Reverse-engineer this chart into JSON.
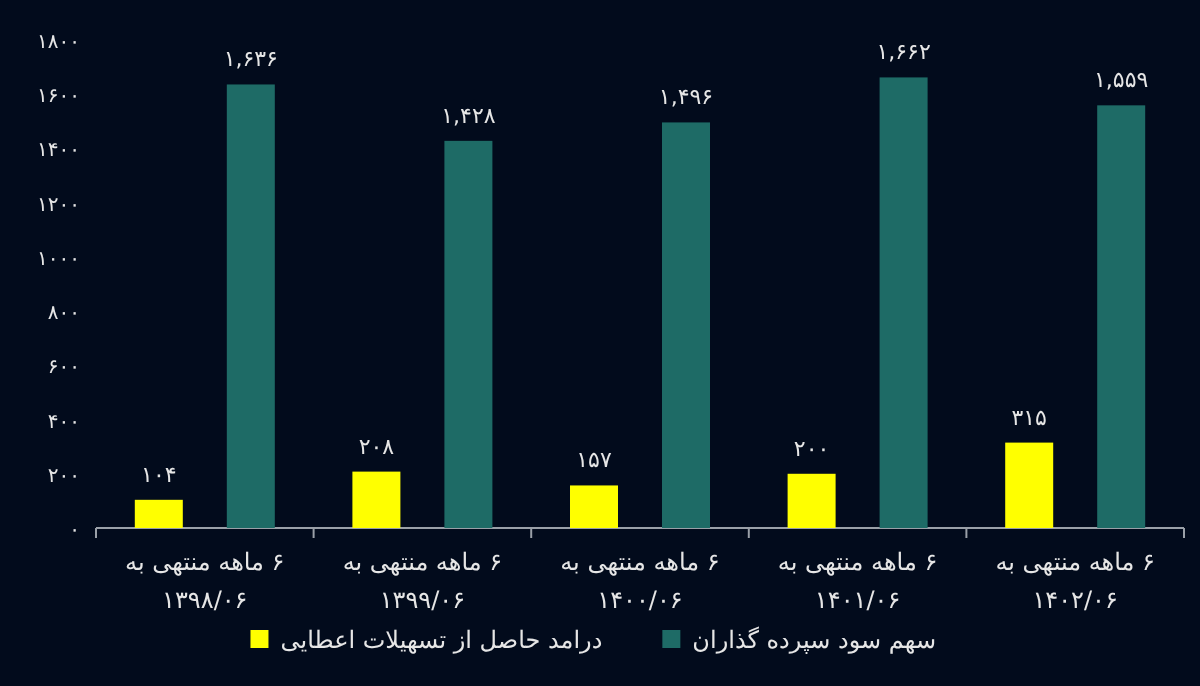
{
  "chart_data": {
    "type": "bar",
    "categories": [
      "۶ ماهه منتهی به ۱۳۹۸/۰۶",
      "۶ ماهه منتهی به ۱۳۹۹/۰۶",
      "۶ ماهه منتهی به ۱۴۰۰/۰۶",
      "۶ ماهه منتهی به ۱۴۰۱/۰۶",
      "۶ ماهه منتهی به ۱۴۰۲/۰۶"
    ],
    "series": [
      {
        "name": "درامد حاصل از تسهیلات اعطایی",
        "color": "#ffff00",
        "values": [
          104,
          208,
          157,
          200,
          315
        ],
        "value_labels": [
          "۱۰۴",
          "۲۰۸",
          "۱۵۷",
          "۲۰۰",
          "۳۱۵"
        ]
      },
      {
        "name": "سهم سود سپرده گذاران",
        "color": "#1e6b66",
        "values": [
          1636,
          1428,
          1496,
          1662,
          1559
        ],
        "value_labels": [
          "۱,۶۳۶",
          "۱,۴۲۸",
          "۱,۴۹۶",
          "۱,۶۶۲",
          "۱,۵۵۹"
        ]
      }
    ],
    "ylim": [
      0,
      1800
    ],
    "yticks": [
      {
        "value": 0,
        "label": "۰"
      },
      {
        "value": 200,
        "label": "۲۰۰"
      },
      {
        "value": 400,
        "label": "۴۰۰"
      },
      {
        "value": 600,
        "label": "۶۰۰"
      },
      {
        "value": 800,
        "label": "۸۰۰"
      },
      {
        "value": 1000,
        "label": "۱۰۰۰"
      },
      {
        "value": 1200,
        "label": "۱۲۰۰"
      },
      {
        "value": 1400,
        "label": "۱۴۰۰"
      },
      {
        "value": 1600,
        "label": "۱۶۰۰"
      },
      {
        "value": 1800,
        "label": "۱۸۰۰"
      }
    ],
    "grid": false,
    "legend": "bottom"
  }
}
